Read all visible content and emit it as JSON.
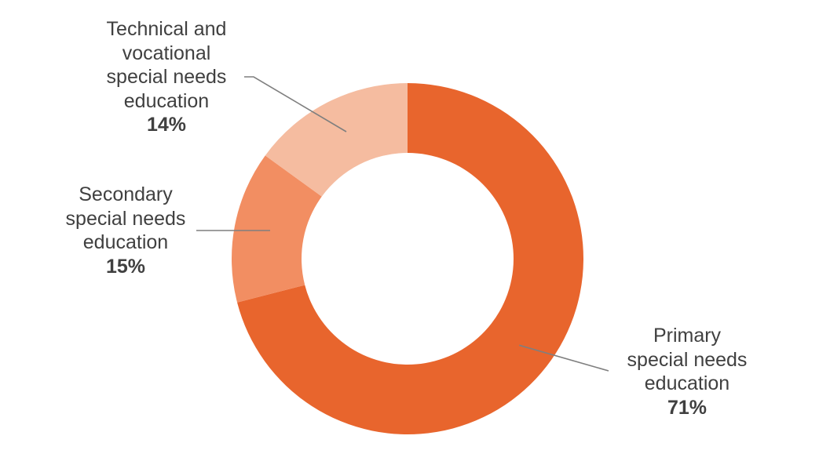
{
  "chart_data": {
    "type": "pie",
    "title": "",
    "categories": [
      "Primary special needs education",
      "Technical and vocational special needs education",
      "Secondary special needs education"
    ],
    "values": [
      71,
      14,
      15
    ],
    "value_labels": [
      "71%",
      "14%",
      "15%"
    ],
    "colors": [
      "#E8652D",
      "#F28E62",
      "#F5BCA0"
    ],
    "donut": true,
    "legend": "none"
  },
  "labels": {
    "primary": {
      "lines": [
        "Primary",
        "special needs",
        "education"
      ],
      "pct": "71%"
    },
    "technical": {
      "lines": [
        "Technical and",
        "vocational",
        "special needs",
        "education"
      ],
      "pct": "14%"
    },
    "secondary": {
      "lines": [
        "Secondary",
        "special needs",
        "education"
      ],
      "pct": "15%"
    }
  }
}
